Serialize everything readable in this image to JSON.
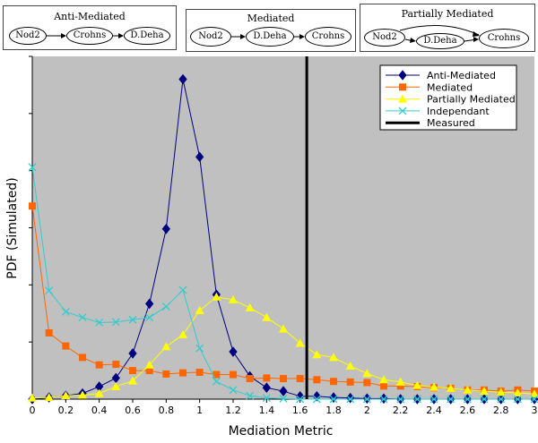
{
  "diagrams": [
    {
      "title": "Anti-Mediated",
      "nodes": [
        "Nod2",
        "Crohns",
        "D.Deha"
      ]
    },
    {
      "title": "Mediated",
      "nodes": [
        "Nod2",
        "D.Deha",
        "Crohns"
      ]
    },
    {
      "title": "Partially Mediated",
      "nodes": [
        "Nod2",
        "D.Deha",
        "Crohns"
      ]
    }
  ],
  "chart_data": {
    "type": "line",
    "xlabel": "Mediation Metric",
    "ylabel": "PDF (Simulated)",
    "xlim": [
      0,
      3
    ],
    "x_ticks": [
      "0",
      "0.2",
      "0.4",
      "0.6",
      "0.8",
      "1",
      "1.2",
      "1.4",
      "1.6",
      "1.8",
      "2",
      "2.2",
      "2.4",
      "2.6",
      "2.8",
      "3"
    ],
    "ylim": [
      0,
      6
    ],
    "y_tick_labels_shown": false,
    "grid": false,
    "legend_position": "top-right",
    "measured": {
      "label": "Measured",
      "x": 1.64,
      "color": "#000000"
    },
    "x": [
      0,
      0.1,
      0.2,
      0.3,
      0.4,
      0.5,
      0.6,
      0.7,
      0.8,
      0.9,
      1.0,
      1.1,
      1.2,
      1.3,
      1.4,
      1.5,
      1.6,
      1.7,
      1.8,
      1.9,
      2.0,
      2.1,
      2.2,
      2.3,
      2.4,
      2.5,
      2.6,
      2.7,
      2.8,
      2.9,
      3.0
    ],
    "series": [
      {
        "name": "Anti-Mediated",
        "color": "#000080",
        "marker": "diamond",
        "values": [
          0,
          0.03,
          0.06,
          0.1,
          0.22,
          0.37,
          0.8,
          1.67,
          2.98,
          5.6,
          4.24,
          1.83,
          0.83,
          0.4,
          0.2,
          0.14,
          0.05,
          0.05,
          0.03,
          0.02,
          0.01,
          0.01,
          0,
          0,
          0,
          0,
          0,
          0,
          0,
          0,
          0
        ]
      },
      {
        "name": "Mediated",
        "color": "#ff6600",
        "marker": "square",
        "values": [
          3.38,
          1.16,
          0.93,
          0.73,
          0.6,
          0.61,
          0.5,
          0.5,
          0.44,
          0.46,
          0.47,
          0.43,
          0.43,
          0.36,
          0.37,
          0.36,
          0.36,
          0.34,
          0.31,
          0.3,
          0.29,
          0.23,
          0.23,
          0.22,
          0.2,
          0.19,
          0.16,
          0.16,
          0.14,
          0.16,
          0.14
        ]
      },
      {
        "name": "Partially Mediated",
        "color": "#ffff00",
        "marker": "triangle",
        "values": [
          0.02,
          0.03,
          0.06,
          0.07,
          0.1,
          0.22,
          0.32,
          0.6,
          0.92,
          1.13,
          1.55,
          1.79,
          1.74,
          1.6,
          1.43,
          1.23,
          0.98,
          0.78,
          0.73,
          0.58,
          0.45,
          0.34,
          0.3,
          0.24,
          0.21,
          0.19,
          0.16,
          0.14,
          0.12,
          0.11,
          0.09
        ]
      },
      {
        "name": "Independant",
        "color": "#33cccc",
        "marker": "x",
        "values": [
          4.06,
          1.9,
          1.53,
          1.43,
          1.34,
          1.35,
          1.39,
          1.43,
          1.62,
          1.91,
          0.89,
          0.31,
          0.16,
          0.06,
          0.02,
          0.01,
          0,
          0,
          0,
          0,
          0,
          0,
          0,
          0,
          0,
          0,
          0,
          0,
          0,
          0,
          0
        ]
      }
    ]
  }
}
